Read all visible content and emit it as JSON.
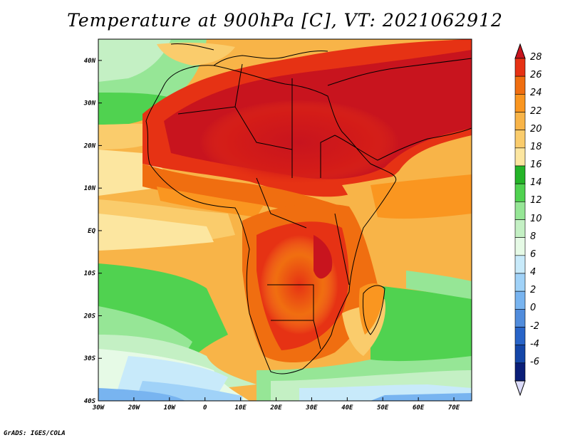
{
  "title": "Temperature at 900hPa [C], VT: 2021062912",
  "credit": "GrADS: IGES/COLA",
  "map": {
    "lon_range": [
      -30,
      75
    ],
    "lat_range": [
      -40,
      45
    ],
    "lon_ticks": [
      {
        "value": -30,
        "label": "30W"
      },
      {
        "value": -20,
        "label": "20W"
      },
      {
        "value": -10,
        "label": "10W"
      },
      {
        "value": 0,
        "label": "0"
      },
      {
        "value": 10,
        "label": "10E"
      },
      {
        "value": 20,
        "label": "20E"
      },
      {
        "value": 30,
        "label": "30E"
      },
      {
        "value": 40,
        "label": "40E"
      },
      {
        "value": 50,
        "label": "50E"
      },
      {
        "value": 60,
        "label": "60E"
      },
      {
        "value": 70,
        "label": "70E"
      }
    ],
    "lat_ticks": [
      {
        "value": 40,
        "label": "40N"
      },
      {
        "value": 30,
        "label": "30N"
      },
      {
        "value": 20,
        "label": "20N"
      },
      {
        "value": 10,
        "label": "10N"
      },
      {
        "value": 0,
        "label": "EQ"
      },
      {
        "value": -10,
        "label": "10S"
      },
      {
        "value": -20,
        "label": "20S"
      },
      {
        "value": -30,
        "label": "30S"
      },
      {
        "value": -40,
        "label": "40S"
      }
    ]
  },
  "colorbar": {
    "labels": [
      "28",
      "26",
      "24",
      "22",
      "20",
      "18",
      "16",
      "14",
      "12",
      "10",
      "8",
      "6",
      "4",
      "2",
      "0",
      "-2",
      "-4",
      "-6"
    ],
    "colors": [
      "#c8141e",
      "#e63214",
      "#f06e10",
      "#fa9620",
      "#f8b448",
      "#facc6c",
      "#fce6a0",
      "#24b428",
      "#50d250",
      "#96e696",
      "#c4f0c4",
      "#e6fae6",
      "#c8eafa",
      "#a0d2f8",
      "#78b4f0",
      "#508cdc",
      "#2864c8",
      "#1446a8",
      "#0a1e78",
      "#dcdcfa"
    ],
    "top_color": "#c8141e",
    "bottom_color": "#dcdcfa"
  }
}
